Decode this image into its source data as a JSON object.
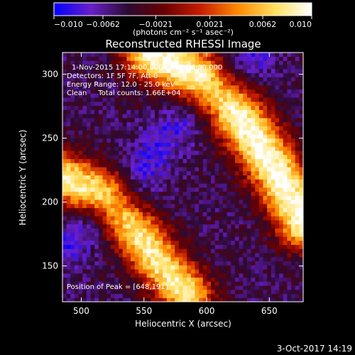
{
  "chart_data": {
    "type": "heatmap",
    "title": "Reconstructed RHESSI Image",
    "xlabel": "Heliocentric X (arcsec)",
    "ylabel": "Heliocentric Y (arcsec)",
    "xlim": [
      485,
      677
    ],
    "ylim": [
      122,
      317
    ],
    "x_ticks": [
      500,
      550,
      600,
      650
    ],
    "y_ticks": [
      150,
      200,
      250,
      300
    ],
    "colorbar": {
      "range": [
        -0.01,
        0.01
      ],
      "tick_labels": [
        "-0.010",
        "-0.0062",
        "-0.0021",
        "0.0021",
        "0.0062",
        "0.010"
      ],
      "unit_label": "(photons cm⁻² s⁻¹ asec⁻²)",
      "colormap": [
        "#0000ff",
        "#6a1fc9",
        "#2b0a33",
        "#6a0000",
        "#c81e00",
        "#ff8a00",
        "#ffe060",
        "#ffffff"
      ]
    },
    "annotations": [
      "1-Nov-2015 17:14:00.000 to 17:24:00.000",
      "Detectors: 1F 5F 7F, Att 0",
      "Energy Range: 12.0 - 25.0 keV",
      "Clean     Total counts: 1.66E+04",
      "Position of Peak = [648,191]"
    ],
    "peak": {
      "x": 648,
      "y": 191
    },
    "stripes": [
      {
        "kind": "positive",
        "path": [
          [
            485,
            220
          ],
          [
            520,
            205
          ],
          [
            545,
            175
          ],
          [
            565,
            150
          ],
          [
            585,
            128
          ]
        ],
        "width": 28,
        "peak_value": 0.0085
      },
      {
        "kind": "positive",
        "path": [
          [
            555,
            317
          ],
          [
            590,
            300
          ],
          [
            615,
            280
          ],
          [
            635,
            255
          ],
          [
            655,
            225
          ],
          [
            677,
            185
          ]
        ],
        "width": 30,
        "peak_value": 0.01
      },
      {
        "kind": "negative",
        "path": [
          [
            485,
            165
          ],
          [
            535,
            200
          ],
          [
            565,
            250
          ],
          [
            595,
            275
          ],
          [
            615,
            290
          ],
          [
            640,
            317
          ]
        ],
        "width": 24,
        "peak_value": -0.01
      }
    ]
  },
  "footer": {
    "date": "3-Oct-2017 14:19"
  }
}
